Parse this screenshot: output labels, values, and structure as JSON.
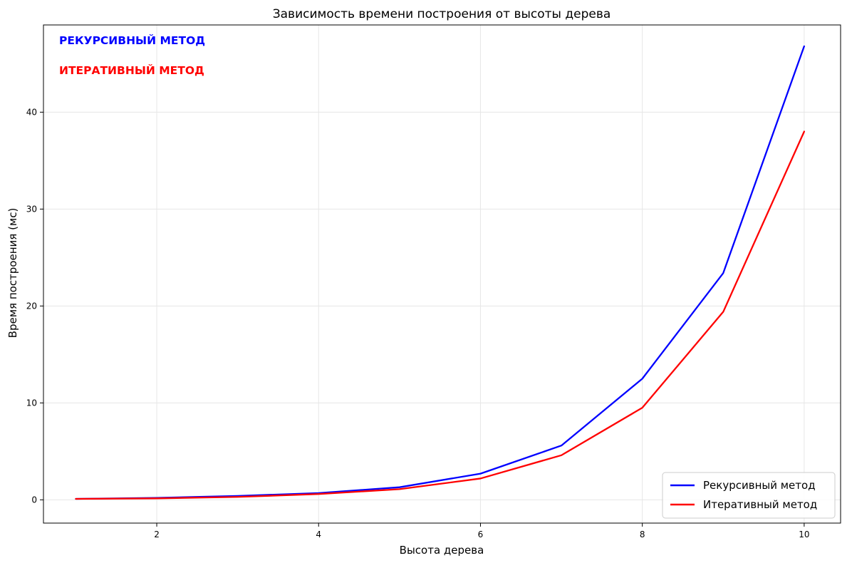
{
  "chart_data": {
    "type": "line",
    "title": "Зависимость времени построения от высоты дерева",
    "xlabel": "Высота дерева",
    "ylabel": "Время построения (мс)",
    "xlim": [
      0.6,
      10.45
    ],
    "ylim": [
      -2.4,
      49.0
    ],
    "xticks": [
      2,
      4,
      6,
      8,
      10
    ],
    "yticks": [
      0,
      10,
      20,
      30,
      40
    ],
    "grid": true,
    "legend_position": "lower right",
    "x": [
      1,
      2,
      3,
      4,
      5,
      6,
      7,
      8,
      9,
      10
    ],
    "series": [
      {
        "name": "Рекурсивный метод",
        "color": "#0000ff",
        "values": [
          0.1,
          0.2,
          0.4,
          0.7,
          1.3,
          2.7,
          5.6,
          12.5,
          23.4,
          46.8
        ]
      },
      {
        "name": "Итеративный метод",
        "color": "#ff0000",
        "values": [
          0.1,
          0.15,
          0.3,
          0.6,
          1.1,
          2.2,
          4.6,
          9.5,
          19.4,
          38.0
        ]
      }
    ],
    "annotations": [
      {
        "text": "РЕКУРСИВНЫЙ МЕТОД",
        "color": "#0000ff"
      },
      {
        "text": "ИТЕРАТИВНЫЙ МЕТОД",
        "color": "#ff0000"
      }
    ]
  }
}
